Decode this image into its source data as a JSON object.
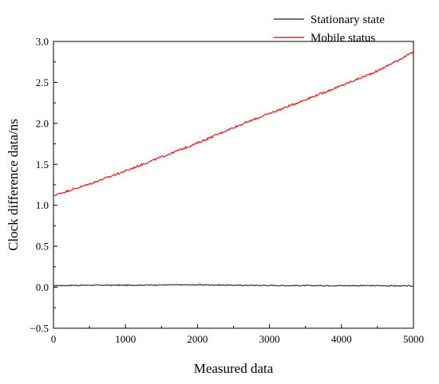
{
  "chart_data": {
    "type": "line",
    "xlabel": "Measured data",
    "ylabel": "Clock difference data/ns",
    "xlim": [
      0,
      5000
    ],
    "ylim": [
      -0.5,
      3.0
    ],
    "x_ticks": [
      0,
      1000,
      2000,
      3000,
      4000,
      5000
    ],
    "y_ticks": [
      -0.5,
      0.0,
      0.5,
      1.0,
      1.5,
      2.0,
      2.5,
      3.0
    ],
    "x_tick_labels": [
      "0",
      "1000",
      "2000",
      "3000",
      "4000",
      "5000"
    ],
    "y_tick_labels": [
      "−0.5",
      "0.0",
      "0.5",
      "1.0",
      "1.5",
      "2.0",
      "2.5",
      "3.0"
    ],
    "grid": false,
    "legend_position": "top-right",
    "series": [
      {
        "name": "Stationary state",
        "color": "#444444",
        "x": [
          0,
          500,
          1000,
          1500,
          2000,
          2500,
          3000,
          3500,
          4000,
          4500,
          5000
        ],
        "y": [
          0.02,
          0.025,
          0.025,
          0.028,
          0.03,
          0.025,
          0.022,
          0.02,
          0.02,
          0.02,
          0.015
        ]
      },
      {
        "name": "Mobile status",
        "color": "#e8282b",
        "x": [
          0,
          500,
          1000,
          1500,
          2000,
          2500,
          3000,
          3500,
          4000,
          4500,
          5000
        ],
        "y": [
          1.12,
          1.26,
          1.42,
          1.59,
          1.76,
          1.95,
          2.12,
          2.29,
          2.46,
          2.64,
          2.87
        ]
      }
    ]
  }
}
